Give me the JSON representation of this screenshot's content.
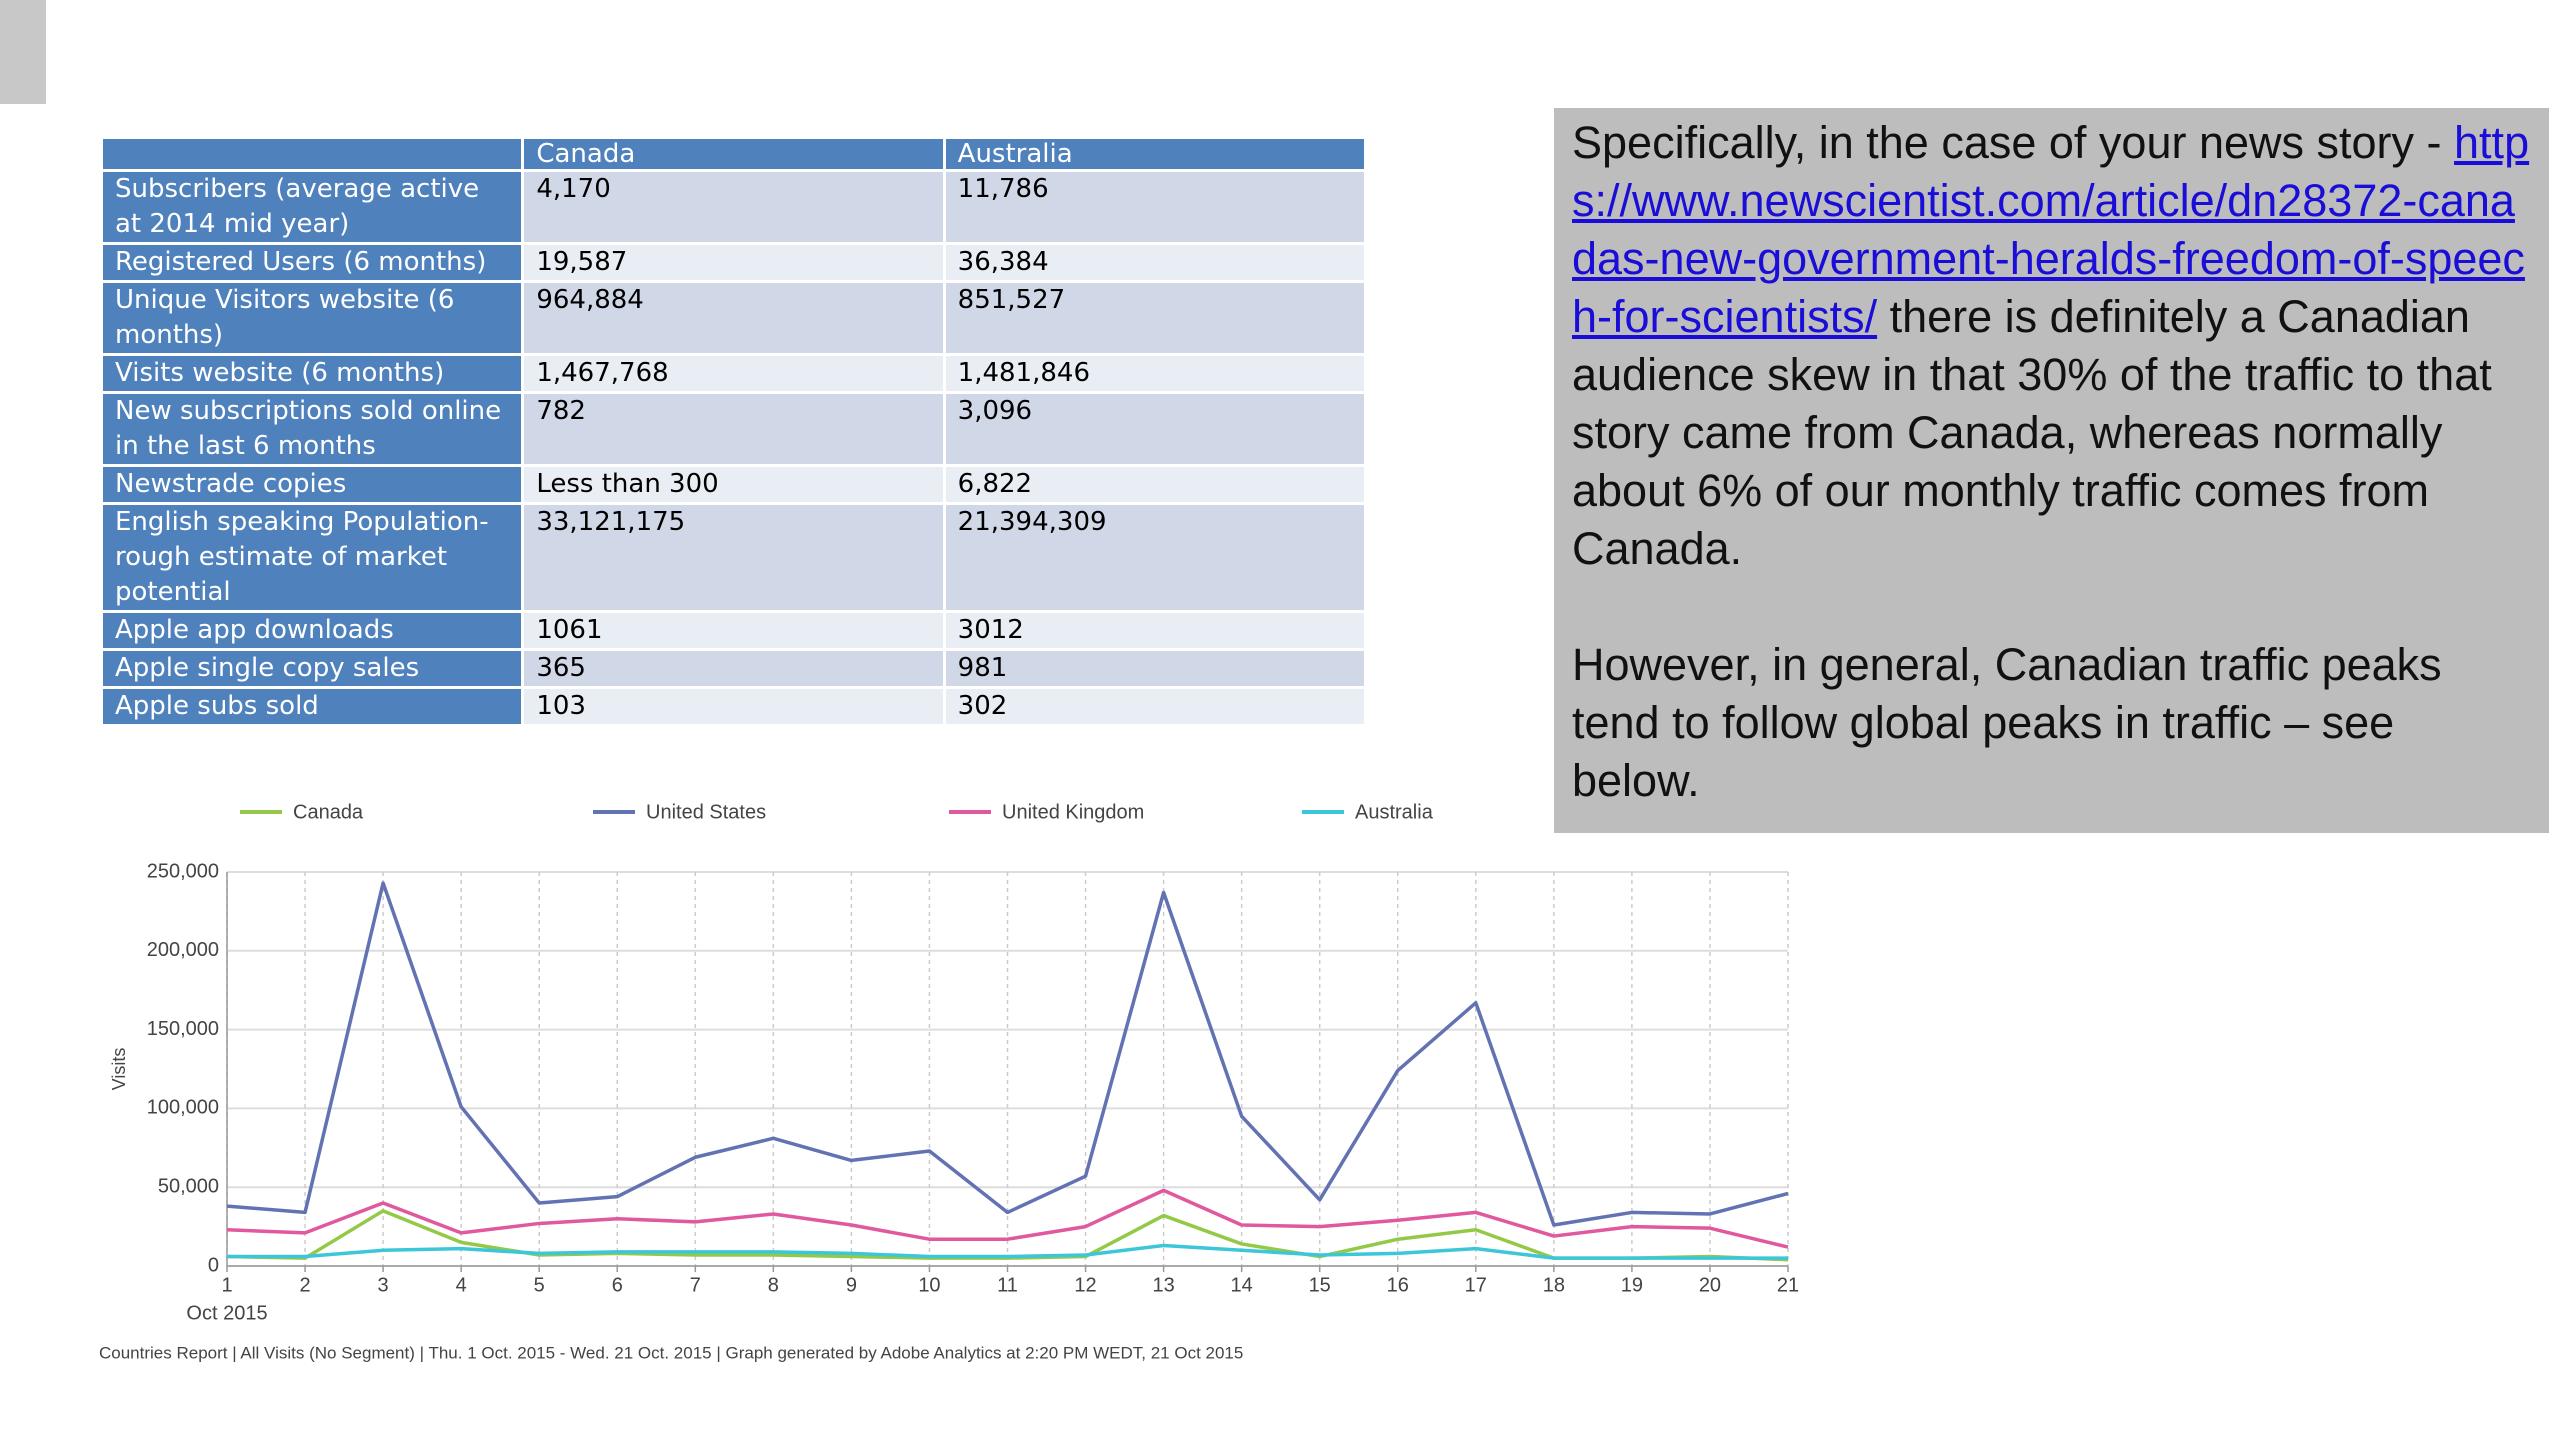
{
  "table": {
    "columns": [
      "Canada",
      "Australia"
    ],
    "rows": [
      {
        "label": "Subscribers (average active at 2014 mid year)",
        "values": [
          "4,170",
          "11,786"
        ]
      },
      {
        "label": "Registered Users (6 months)",
        "values": [
          "19,587",
          "36,384"
        ]
      },
      {
        "label": "Unique Visitors website (6 months)",
        "values": [
          "964,884",
          "851,527"
        ]
      },
      {
        "label": "Visits website (6 months)",
        "values": [
          "1,467,768",
          "1,481,846"
        ]
      },
      {
        "label": "New subscriptions sold online in the last 6 months",
        "values": [
          "782",
          "3,096"
        ]
      },
      {
        "label": "Newstrade copies",
        "values": [
          "Less than 300",
          "6,822"
        ]
      },
      {
        "label": "English speaking Population- rough estimate of market potential",
        "values": [
          "33,121,175",
          "21,394,309"
        ]
      },
      {
        "label": "Apple app downloads",
        "values": [
          "1061",
          "3012"
        ]
      },
      {
        "label": "Apple single copy sales",
        "values": [
          "365",
          "981"
        ]
      },
      {
        "label": "Apple subs sold",
        "values": [
          "103",
          "302"
        ]
      }
    ]
  },
  "text_box": {
    "intro": "Specifically, in the case of your news story - ",
    "link": "https://www.newscientist.com/article/dn28372-canadas-new-government-heralds-freedom-of-speech-for-scientists/",
    "body": " there is definitely a Canadian audience skew in that 30% of the traffic to that story came from Canada, whereas normally about 6% of our monthly traffic comes from Canada.",
    "closing": "However, in general, Canadian traffic peaks tend to follow global peaks in traffic – see below."
  },
  "chart_data": {
    "type": "line",
    "y_label": "Visits",
    "x_label": "Oct 2015",
    "footer": "Countries Report | All Visits (No Segment) | Thu.  1 Oct. 2015 - Wed. 21 Oct. 2015 | Graph generated by Adobe Analytics at  2:20 PM WEDT, 21 Oct 2015",
    "categories": [
      "1",
      "2",
      "3",
      "4",
      "5",
      "6",
      "7",
      "8",
      "9",
      "10",
      "11",
      "12",
      "13",
      "14",
      "15",
      "16",
      "17",
      "18",
      "19",
      "20",
      "21"
    ],
    "series": [
      {
        "name": "Canada",
        "color": "#94c948",
        "values": [
          6000,
          5000,
          35000,
          15000,
          7000,
          8000,
          7000,
          7000,
          6000,
          5000,
          5000,
          6000,
          32000,
          14000,
          6000,
          17000,
          23000,
          5000,
          5000,
          6000,
          4000
        ]
      },
      {
        "name": "United States",
        "color": "#6272b2",
        "values": [
          38000,
          34000,
          243000,
          101000,
          40000,
          44000,
          69000,
          81000,
          67000,
          73000,
          34000,
          57000,
          237000,
          95000,
          42000,
          124000,
          167000,
          26000,
          34000,
          33000,
          46000
        ]
      },
      {
        "name": "United Kingdom",
        "color": "#e0589e",
        "values": [
          23000,
          21000,
          40000,
          21000,
          27000,
          30000,
          28000,
          33000,
          26000,
          17000,
          17000,
          25000,
          48000,
          26000,
          25000,
          29000,
          34000,
          19000,
          25000,
          24000,
          12000
        ]
      },
      {
        "name": "Australia",
        "color": "#3cc6d9",
        "values": [
          6000,
          6000,
          10000,
          11000,
          8000,
          9000,
          9000,
          9000,
          8000,
          6000,
          6000,
          7000,
          13000,
          10000,
          7000,
          8000,
          11000,
          5000,
          5000,
          5000,
          5000
        ]
      }
    ],
    "ylim": [
      0,
      250000
    ],
    "yticks": [
      0,
      {
        "value": 50000,
        "label": "50,000"
      },
      {
        "value": 100000,
        "label": "100,000"
      },
      {
        "value": 150000,
        "label": "150,000"
      },
      {
        "value": 200000,
        "label": "200,000"
      },
      {
        "value": 250000,
        "label": "250,000"
      }
    ],
    "grid": true,
    "legend": "top"
  }
}
